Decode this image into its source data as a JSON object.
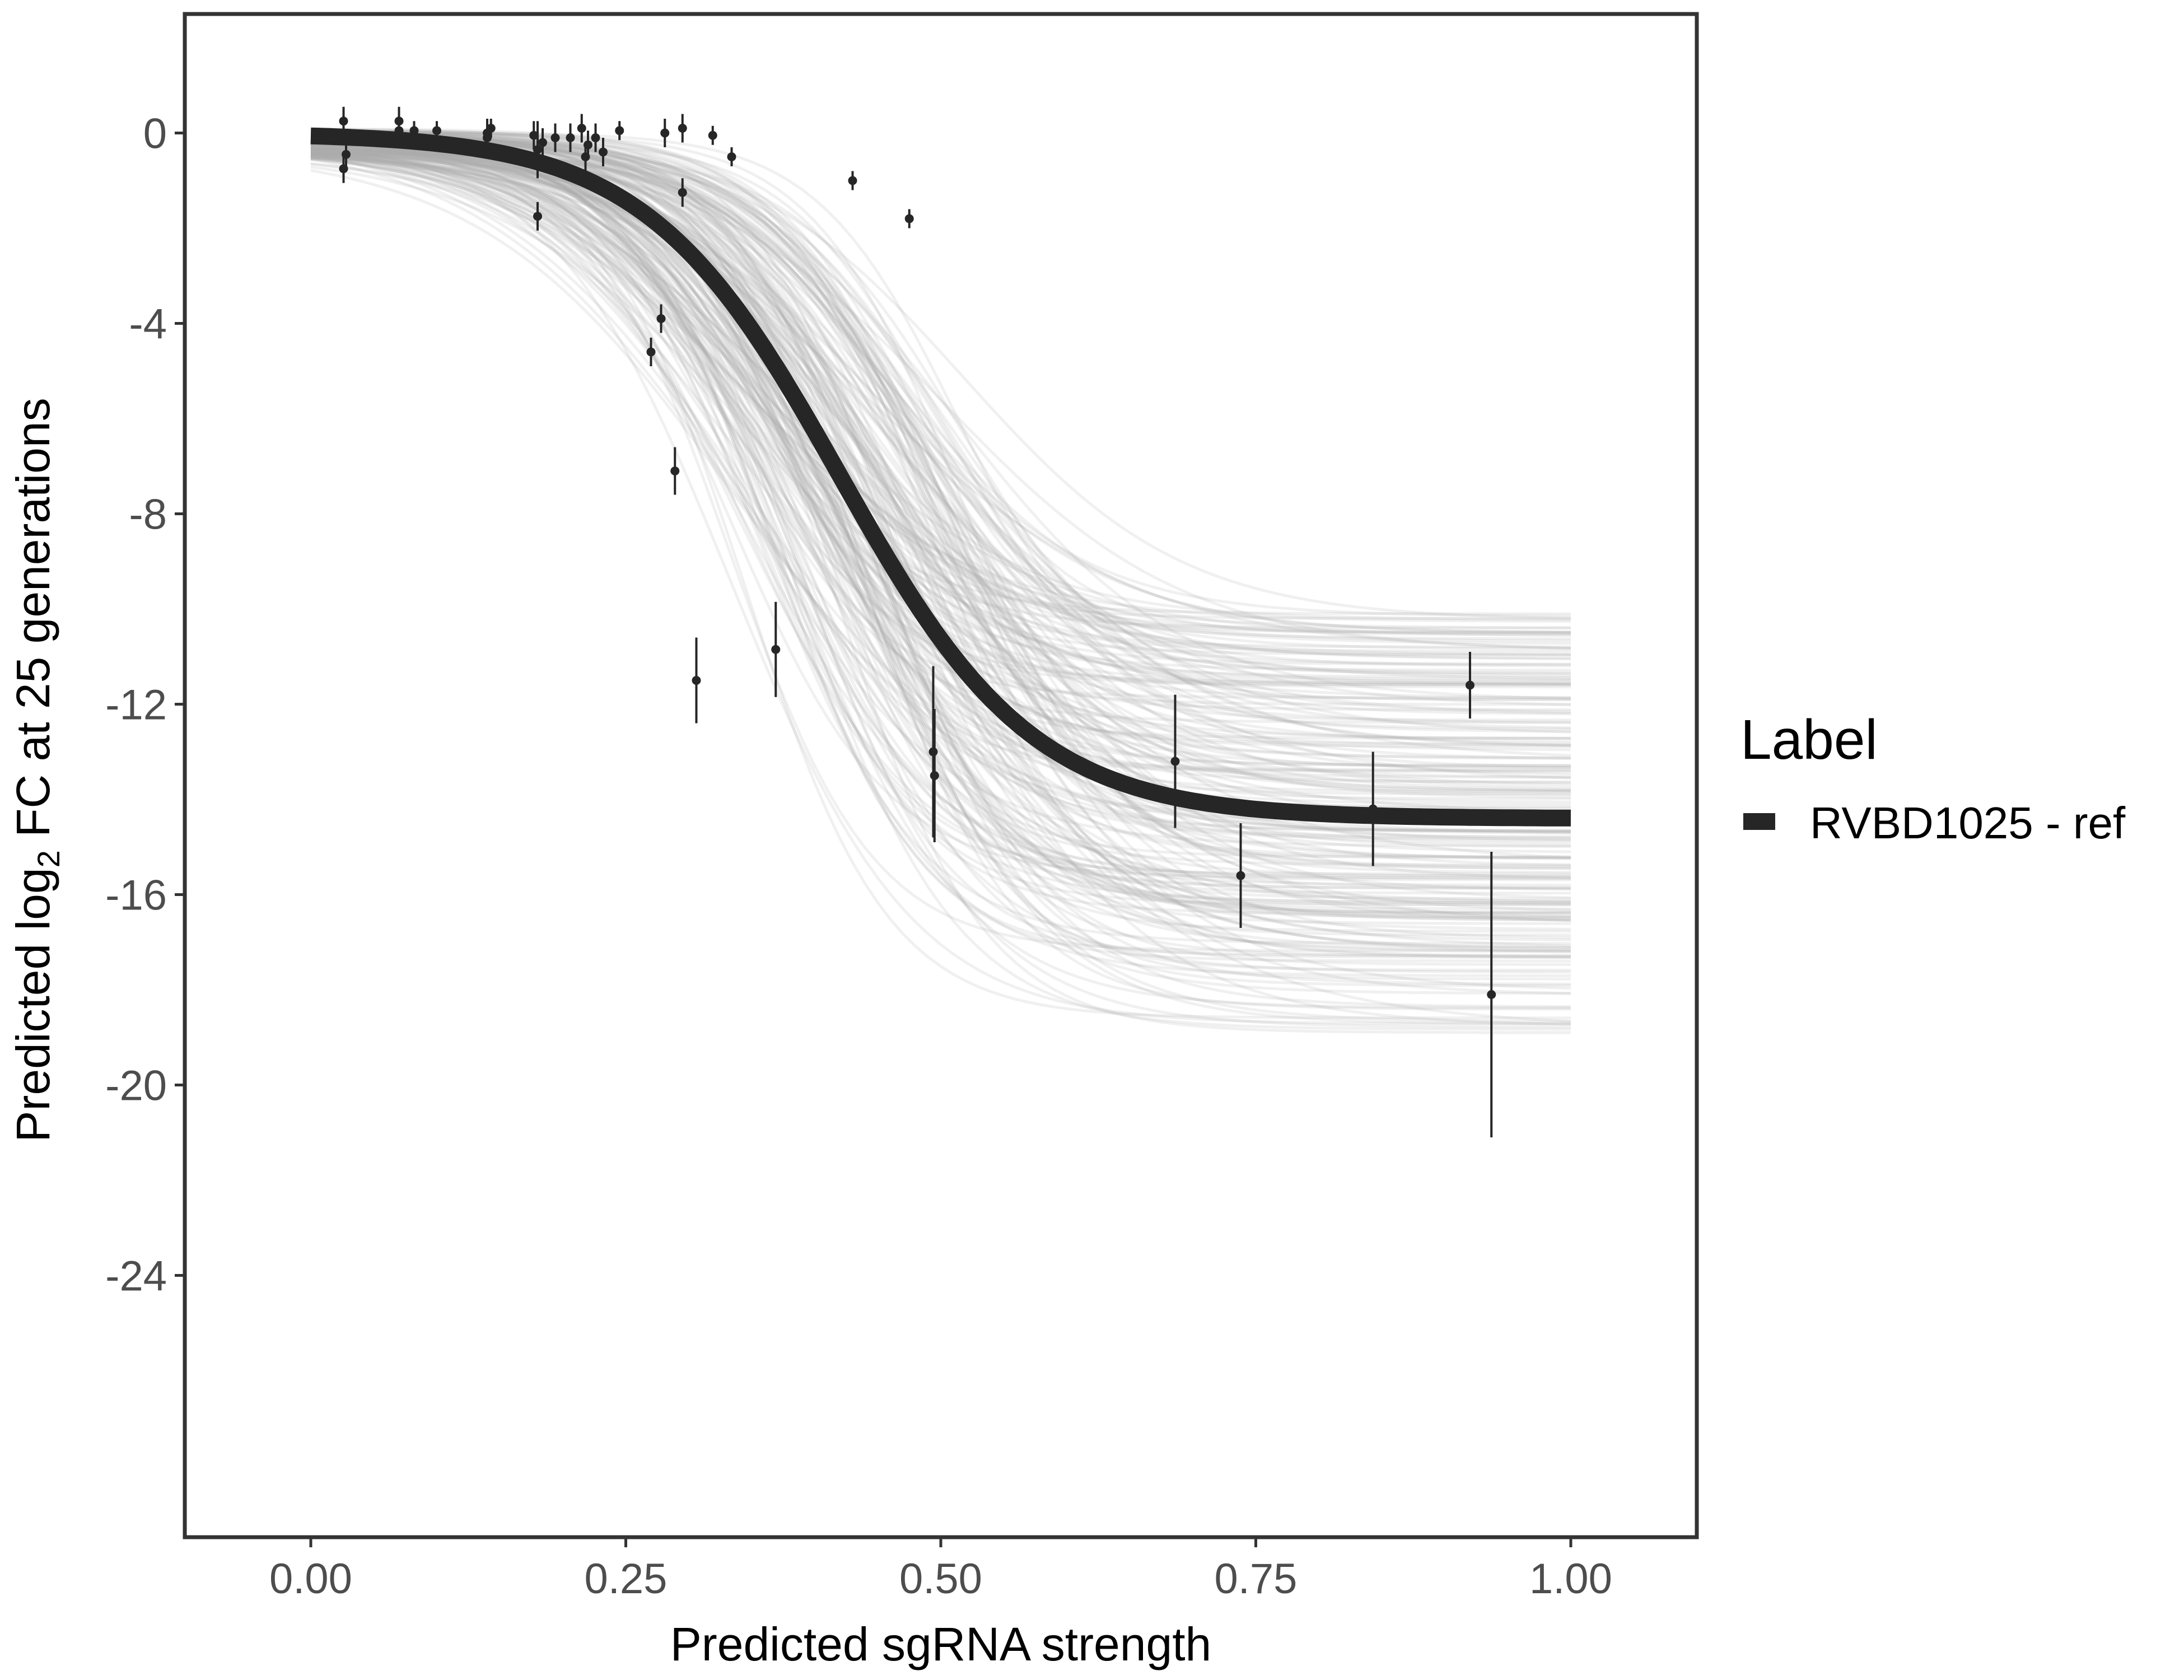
{
  "chart_data": {
    "type": "line",
    "title": "",
    "xlabel": "Predicted sgRNA strength",
    "ylabel_parts": {
      "pre": "Predicted  log",
      "sub": "2",
      "post": " FC at 25 generations"
    },
    "xlim": [
      -0.1,
      1.1
    ],
    "ylim": [
      -29.5,
      2.5
    ],
    "x_ticks": [
      0.0,
      0.25,
      0.5,
      0.75,
      1.0
    ],
    "x_tick_labels": [
      "0.00",
      "0.25",
      "0.50",
      "0.75",
      "1.00"
    ],
    "y_ticks": [
      0,
      -4,
      -8,
      -12,
      -16,
      -20,
      -24
    ],
    "y_tick_labels": [
      "0",
      "-4",
      "-8",
      "-12",
      "-16",
      "-20",
      "-24"
    ],
    "grid": false,
    "legend": {
      "title": "Label",
      "entries": [
        {
          "label": "RVBD1025 - ref",
          "color": "#262626"
        }
      ],
      "position": "right"
    },
    "fit_curve": {
      "name": "RVBD1025 - ref",
      "color": "#262626",
      "model": "logistic",
      "baseline": 0.0,
      "asymptote": -14.4,
      "midpoint": 0.42,
      "slope": 13.0
    },
    "posterior_draws": {
      "color": "#aaaaaa",
      "count": 220,
      "asymptote_range": [
        -18.9,
        -10.1
      ],
      "midpoint_range": [
        0.33,
        0.52
      ],
      "slope_range": [
        9,
        18
      ]
    },
    "points": [
      {
        "x": 0.026,
        "y": 0.25,
        "err": 0.3
      },
      {
        "x": 0.026,
        "y": -0.75,
        "err": 0.3
      },
      {
        "x": 0.028,
        "y": -0.45,
        "err": 0.3
      },
      {
        "x": 0.07,
        "y": 0.25,
        "err": 0.3
      },
      {
        "x": 0.07,
        "y": 0.05,
        "err": 0.3
      },
      {
        "x": 0.082,
        "y": 0.05,
        "err": 0.2
      },
      {
        "x": 0.1,
        "y": 0.05,
        "err": 0.2
      },
      {
        "x": 0.14,
        "y": 0.0,
        "err": 0.3
      },
      {
        "x": 0.14,
        "y": -0.1,
        "err": 0.2
      },
      {
        "x": 0.143,
        "y": 0.1,
        "err": 0.2
      },
      {
        "x": 0.177,
        "y": -0.05,
        "err": 0.3
      },
      {
        "x": 0.18,
        "y": -0.35,
        "err": 0.6
      },
      {
        "x": 0.18,
        "y": -1.75,
        "err": 0.3
      },
      {
        "x": 0.184,
        "y": -0.2,
        "err": 0.3
      },
      {
        "x": 0.194,
        "y": -0.1,
        "err": 0.3
      },
      {
        "x": 0.206,
        "y": -0.1,
        "err": 0.3
      },
      {
        "x": 0.215,
        "y": 0.1,
        "err": 0.3
      },
      {
        "x": 0.218,
        "y": -0.5,
        "err": 0.3
      },
      {
        "x": 0.22,
        "y": -0.25,
        "err": 0.3
      },
      {
        "x": 0.226,
        "y": -0.1,
        "err": 0.3
      },
      {
        "x": 0.232,
        "y": -0.4,
        "err": 0.3
      },
      {
        "x": 0.245,
        "y": 0.05,
        "err": 0.2
      },
      {
        "x": 0.27,
        "y": -4.6,
        "err": 0.3
      },
      {
        "x": 0.278,
        "y": -3.9,
        "err": 0.3
      },
      {
        "x": 0.281,
        "y": 0.0,
        "err": 0.3
      },
      {
        "x": 0.289,
        "y": -7.1,
        "err": 0.5
      },
      {
        "x": 0.295,
        "y": 0.1,
        "err": 0.3
      },
      {
        "x": 0.295,
        "y": -1.25,
        "err": 0.3
      },
      {
        "x": 0.306,
        "y": -11.5,
        "err": 0.9
      },
      {
        "x": 0.319,
        "y": -0.05,
        "err": 0.2
      },
      {
        "x": 0.334,
        "y": -0.5,
        "err": 0.2
      },
      {
        "x": 0.369,
        "y": -10.85,
        "err": 1.0
      },
      {
        "x": 0.43,
        "y": -1.0,
        "err": 0.2
      },
      {
        "x": 0.475,
        "y": -1.8,
        "err": 0.2
      },
      {
        "x": 0.494,
        "y": -13.0,
        "err": 1.8
      },
      {
        "x": 0.495,
        "y": -13.5,
        "err": 1.4
      },
      {
        "x": 0.686,
        "y": -13.2,
        "err": 1.4
      },
      {
        "x": 0.738,
        "y": -15.6,
        "err": 1.1
      },
      {
        "x": 0.843,
        "y": -14.2,
        "err": 1.2
      },
      {
        "x": 0.92,
        "y": -11.6,
        "err": 0.7
      },
      {
        "x": 0.937,
        "y": -18.1,
        "err": 3.0
      }
    ]
  }
}
